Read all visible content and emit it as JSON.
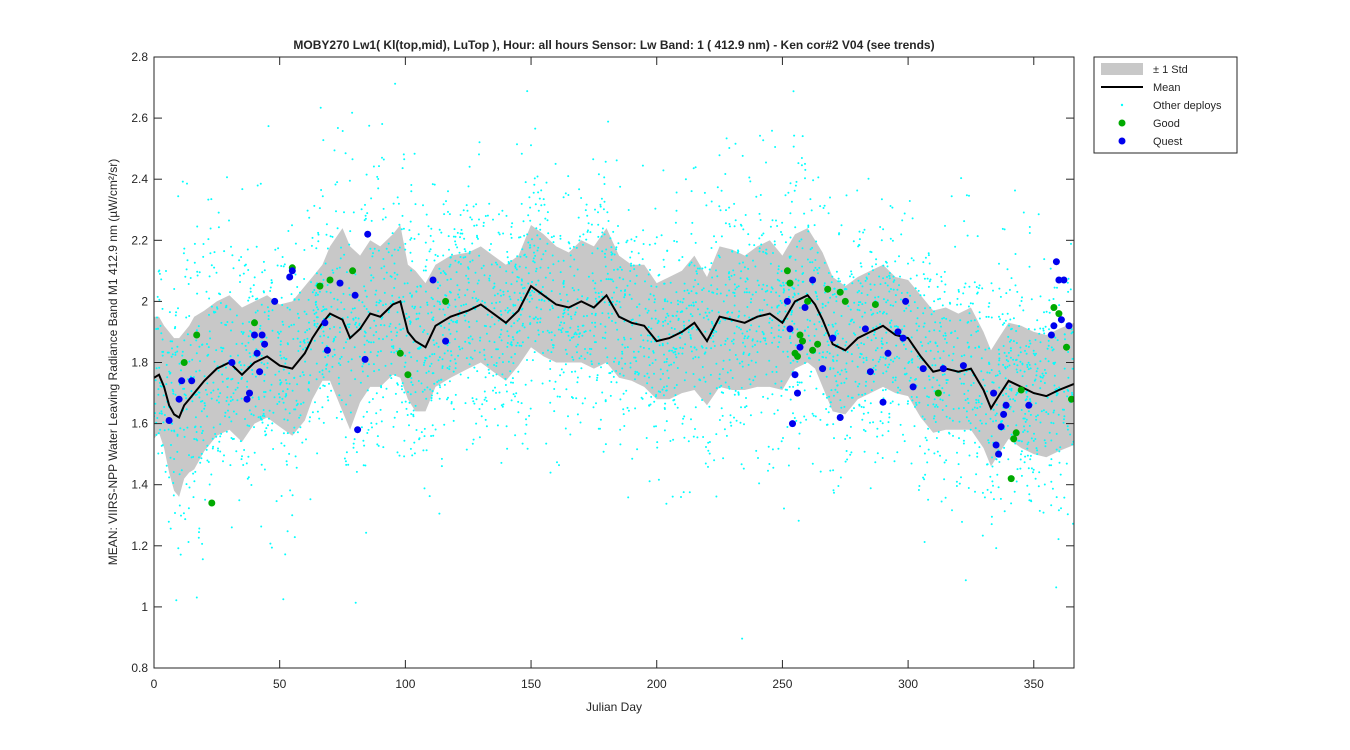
{
  "chart_data": {
    "type": "scatter",
    "title": "MOBY270   Lw1( Kl(top,mid), LuTop ),    Hour: all hours  Sensor: Lw Band: 1 ( 412.9 nm)  - Ken cor#2 V04 (see trends)",
    "xlabel": "Julian Day",
    "ylabel": "MEAN: VIIRS-NPP Water Leaving Radiance Band M1 412.9 nm (µW/cm²/sr)",
    "xlim": [
      0,
      366
    ],
    "ylim": [
      0.8,
      2.8
    ],
    "x_ticks": [
      "0",
      "50",
      "100",
      "150",
      "200",
      "250",
      "300",
      "350"
    ],
    "y_ticks": [
      "0.8",
      "1",
      "1.2",
      "1.4",
      "1.6",
      "1.8",
      "2",
      "2.2",
      "2.4",
      "2.6",
      "2.8"
    ],
    "grid": false,
    "legend_position": "outside-top-right",
    "legend": [
      {
        "label": "± 1 Std",
        "kind": "patch",
        "color": "#c8c8c8"
      },
      {
        "label": "Mean",
        "kind": "line",
        "color": "#000000"
      },
      {
        "label": "Other deploys",
        "kind": "dot",
        "color": "#00ffff"
      },
      {
        "label": "Good",
        "kind": "marker",
        "color": "#00aa00"
      },
      {
        "label": "Quest",
        "kind": "marker",
        "color": "#0000ee"
      }
    ],
    "mean": {
      "x": [
        0,
        2,
        4,
        6,
        8,
        10,
        12,
        14,
        16,
        20,
        25,
        30,
        35,
        40,
        45,
        50,
        55,
        60,
        63,
        67,
        70,
        75,
        78,
        82,
        86,
        90,
        95,
        98,
        101,
        104,
        108,
        112,
        118,
        125,
        130,
        135,
        140,
        145,
        150,
        155,
        160,
        165,
        170,
        175,
        180,
        185,
        190,
        195,
        200,
        205,
        210,
        215,
        220,
        225,
        230,
        235,
        240,
        245,
        250,
        255,
        260,
        263,
        266,
        270,
        275,
        280,
        285,
        290,
        295,
        300,
        305,
        310,
        315,
        320,
        325,
        330,
        333,
        336,
        340,
        345,
        350,
        355,
        360,
        363,
        366
      ],
      "y": [
        1.75,
        1.76,
        1.72,
        1.66,
        1.63,
        1.62,
        1.66,
        1.68,
        1.7,
        1.74,
        1.78,
        1.8,
        1.76,
        1.8,
        1.82,
        1.79,
        1.78,
        1.83,
        1.88,
        1.93,
        1.96,
        1.94,
        1.88,
        1.91,
        1.96,
        1.95,
        1.99,
        2.0,
        1.9,
        1.87,
        1.85,
        1.92,
        1.95,
        1.97,
        1.99,
        1.96,
        1.93,
        1.97,
        2.05,
        2.02,
        1.99,
        1.98,
        2.0,
        1.98,
        2.02,
        1.95,
        1.93,
        1.92,
        1.87,
        1.88,
        1.9,
        1.93,
        1.87,
        1.95,
        1.94,
        1.93,
        1.95,
        1.96,
        1.93,
        2.0,
        2.02,
        1.99,
        1.94,
        1.86,
        1.84,
        1.88,
        1.9,
        1.92,
        1.89,
        1.88,
        1.82,
        1.77,
        1.78,
        1.77,
        1.78,
        1.71,
        1.65,
        1.69,
        1.74,
        1.72,
        1.7,
        1.69,
        1.71,
        1.72,
        1.73
      ]
    },
    "std_upper": [
      1.95,
      1.95,
      1.92,
      1.9,
      1.88,
      1.88,
      1.9,
      1.92,
      1.95,
      1.97,
      2.0,
      2.02,
      1.98,
      2.0,
      2.02,
      1.99,
      2.0,
      2.05,
      2.08,
      2.12,
      2.18,
      2.24,
      2.18,
      2.15,
      2.2,
      2.18,
      2.22,
      2.25,
      2.12,
      2.1,
      2.06,
      2.12,
      2.15,
      2.16,
      2.18,
      2.15,
      2.12,
      2.15,
      2.25,
      2.22,
      2.18,
      2.16,
      2.2,
      2.18,
      2.24,
      2.15,
      2.12,
      2.12,
      2.06,
      2.08,
      2.1,
      2.15,
      2.08,
      2.18,
      2.17,
      2.15,
      2.18,
      2.2,
      2.15,
      2.22,
      2.24,
      2.2,
      2.16,
      2.08,
      2.05,
      2.08,
      2.1,
      2.12,
      2.08,
      2.07,
      2.02,
      1.97,
      1.98,
      1.96,
      1.98,
      1.9,
      1.84,
      1.88,
      1.93,
      1.92,
      1.9,
      1.89,
      1.91,
      1.92,
      1.93
    ],
    "std_lower": [
      1.55,
      1.57,
      1.52,
      1.44,
      1.38,
      1.36,
      1.42,
      1.44,
      1.45,
      1.51,
      1.56,
      1.58,
      1.54,
      1.6,
      1.62,
      1.59,
      1.56,
      1.61,
      1.68,
      1.74,
      1.74,
      1.64,
      1.58,
      1.67,
      1.72,
      1.72,
      1.76,
      1.75,
      1.68,
      1.64,
      1.64,
      1.72,
      1.75,
      1.78,
      1.8,
      1.77,
      1.74,
      1.79,
      1.85,
      1.82,
      1.8,
      1.8,
      1.8,
      1.78,
      1.8,
      1.75,
      1.74,
      1.72,
      1.68,
      1.68,
      1.7,
      1.71,
      1.66,
      1.72,
      1.71,
      1.71,
      1.72,
      1.72,
      1.71,
      1.78,
      1.8,
      1.78,
      1.72,
      1.64,
      1.63,
      1.68,
      1.7,
      1.72,
      1.7,
      1.69,
      1.62,
      1.57,
      1.58,
      1.58,
      1.58,
      1.52,
      1.46,
      1.5,
      1.55,
      1.52,
      1.5,
      1.49,
      1.51,
      1.52,
      1.53
    ],
    "good": {
      "x": [
        12,
        17,
        23,
        40,
        55,
        66,
        70,
        79,
        98,
        101,
        116,
        252,
        253,
        255,
        256,
        257,
        258,
        260,
        262,
        264,
        268,
        273,
        275,
        287,
        312,
        341,
        342,
        343,
        345,
        358,
        360,
        363,
        365
      ],
      "y": [
        1.8,
        1.89,
        1.34,
        1.93,
        2.11,
        2.05,
        2.07,
        2.1,
        1.83,
        1.76,
        2.0,
        2.1,
        2.06,
        1.83,
        1.82,
        1.89,
        1.87,
        2.0,
        1.84,
        1.86,
        2.04,
        2.03,
        2.0,
        1.99,
        1.7,
        1.42,
        1.55,
        1.57,
        1.71,
        1.98,
        1.96,
        1.85,
        1.68
      ]
    },
    "quest": {
      "x": [
        6,
        10,
        11,
        15,
        31,
        37,
        38,
        40,
        41,
        42,
        43,
        44,
        48,
        54,
        55,
        68,
        69,
        74,
        80,
        81,
        84,
        85,
        111,
        116,
        252,
        253,
        254,
        255,
        256,
        257,
        259,
        262,
        266,
        270,
        273,
        283,
        285,
        290,
        292,
        296,
        298,
        299,
        302,
        306,
        314,
        322,
        334,
        335,
        336,
        337,
        338,
        339,
        348,
        357,
        358,
        359,
        360,
        361,
        362,
        364
      ],
      "y": [
        1.61,
        1.68,
        1.74,
        1.74,
        1.8,
        1.68,
        1.7,
        1.89,
        1.83,
        1.77,
        1.89,
        1.86,
        2.0,
        2.08,
        2.1,
        1.93,
        1.84,
        2.06,
        2.02,
        1.58,
        1.81,
        2.22,
        2.07,
        1.87,
        2.0,
        1.91,
        1.6,
        1.76,
        1.7,
        1.85,
        1.98,
        2.07,
        1.78,
        1.88,
        1.62,
        1.91,
        1.77,
        1.67,
        1.83,
        1.9,
        1.88,
        2.0,
        1.72,
        1.78,
        1.78,
        1.79,
        1.7,
        1.53,
        1.5,
        1.59,
        1.63,
        1.66,
        1.66,
        1.89,
        1.92,
        2.13,
        2.07,
        1.94,
        2.07,
        1.92
      ]
    }
  }
}
